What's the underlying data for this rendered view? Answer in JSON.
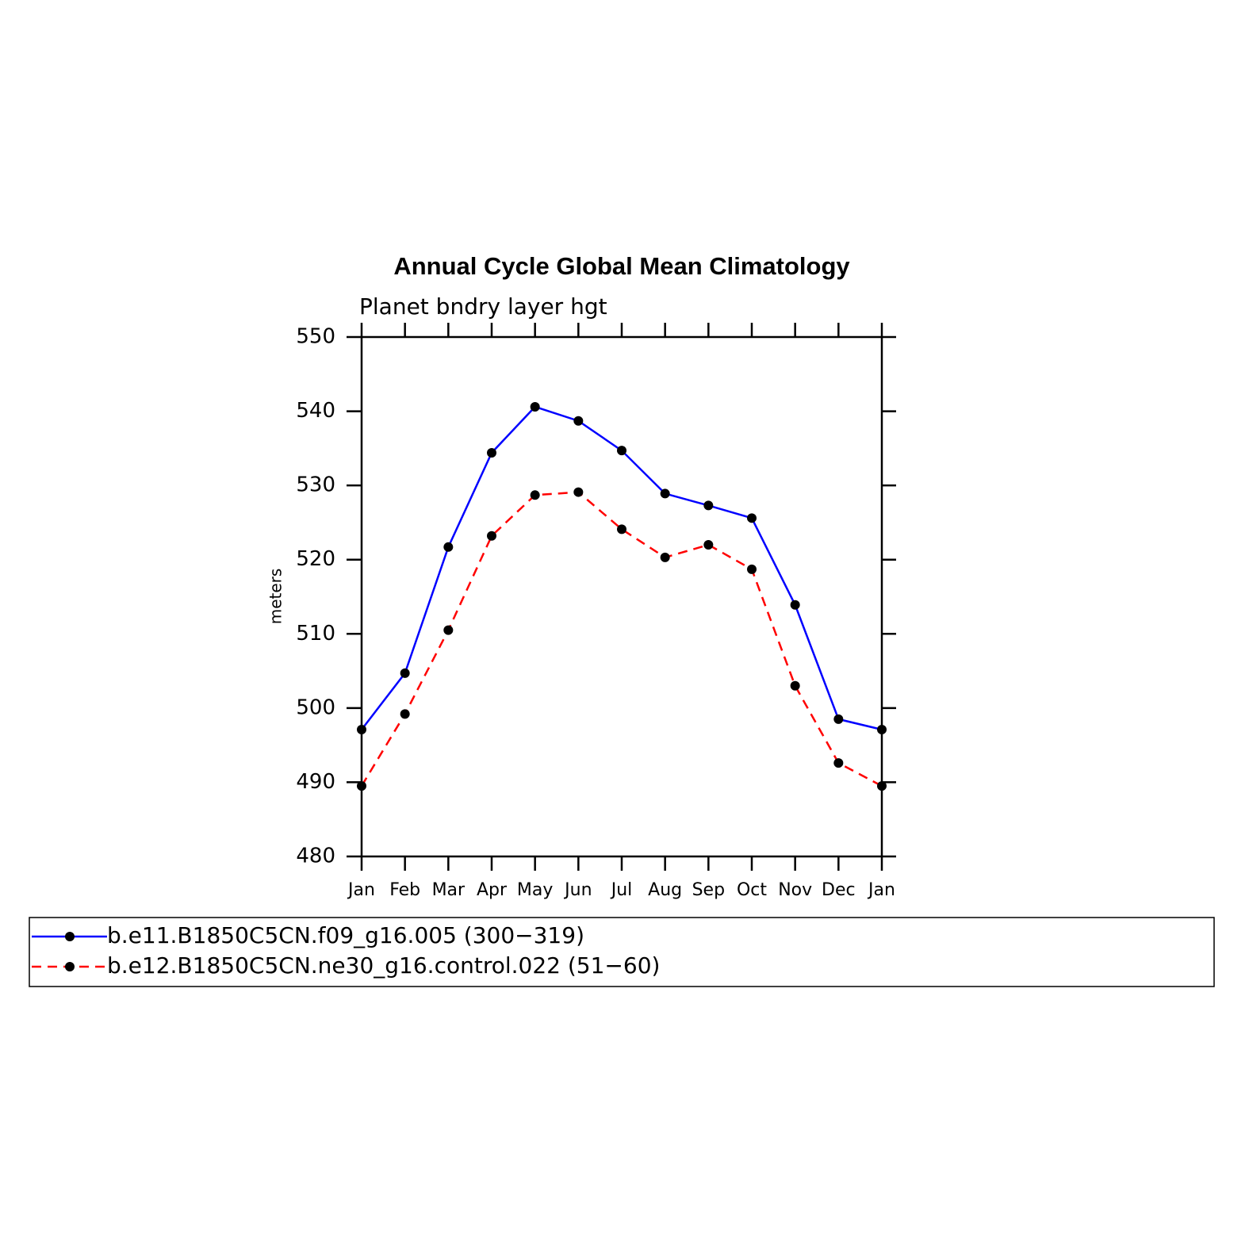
{
  "chart_data": {
    "type": "line",
    "title": "Annual Cycle Global Mean Climatology",
    "subtitle": "Planet bndry layer hgt",
    "ylabel": "meters",
    "categories": [
      "Jan",
      "Feb",
      "Mar",
      "Apr",
      "May",
      "Jun",
      "Jul",
      "Aug",
      "Sep",
      "Oct",
      "Nov",
      "Dec",
      "Jan"
    ],
    "series": [
      {
        "name": "b.e11.B1850C5CN.f09_g16.005 (300−319)",
        "color": "#0000ff",
        "linestyle": "solid",
        "marker_color": "#000000",
        "values": [
          497.1,
          504.7,
          521.7,
          534.4,
          540.6,
          538.7,
          534.7,
          528.9,
          527.3,
          525.6,
          513.9,
          498.5,
          497.1
        ]
      },
      {
        "name": "b.e12.B1850C5CN.ne30_g16.control.022 (51−60)",
        "color": "#ff0000",
        "linestyle": "dashed",
        "marker_color": "#000000",
        "values": [
          489.5,
          499.2,
          510.5,
          523.2,
          528.7,
          529.1,
          524.1,
          520.3,
          522.0,
          518.7,
          503.0,
          492.6,
          489.5
        ]
      }
    ],
    "ylim": [
      480,
      550
    ],
    "yticks": [
      480,
      490,
      500,
      510,
      520,
      530,
      540,
      550
    ],
    "grid": false,
    "legend": "bottom"
  }
}
